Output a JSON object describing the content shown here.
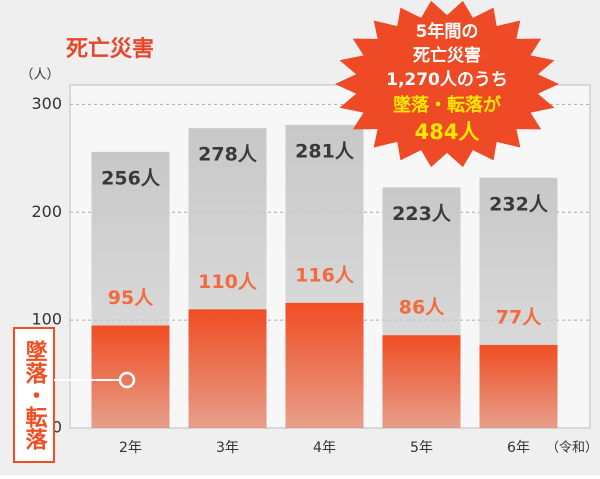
{
  "chart_data": {
    "type": "bar",
    "title": "死亡災害",
    "y_unit": "（人）",
    "x_unit": "（令和）",
    "categories": [
      "2年",
      "3年",
      "4年",
      "5年",
      "6年"
    ],
    "series": [
      {
        "color": "#c8c8c8",
        "values": [
          256,
          278,
          281,
          223,
          232
        ],
        "value_labels": [
          "256人",
          "278人",
          "281人",
          "223人",
          "232人"
        ],
        "label_color": "#3a3a3a"
      },
      {
        "name": "墜落・転落",
        "color": "#f04e23",
        "values": [
          95,
          110,
          116,
          86,
          77
        ],
        "value_labels": [
          "95人",
          "110人",
          "116人",
          "86人",
          "77人"
        ],
        "label_color": "#f26a3d"
      }
    ],
    "ylim": [
      0,
      318
    ],
    "yticks": [
      0,
      100,
      200,
      300
    ],
    "grid": true,
    "callout": {
      "lines": [
        "5年間の",
        "死亡災害",
        "1,270人のうち",
        "墜落・転落が",
        "484人"
      ]
    }
  }
}
